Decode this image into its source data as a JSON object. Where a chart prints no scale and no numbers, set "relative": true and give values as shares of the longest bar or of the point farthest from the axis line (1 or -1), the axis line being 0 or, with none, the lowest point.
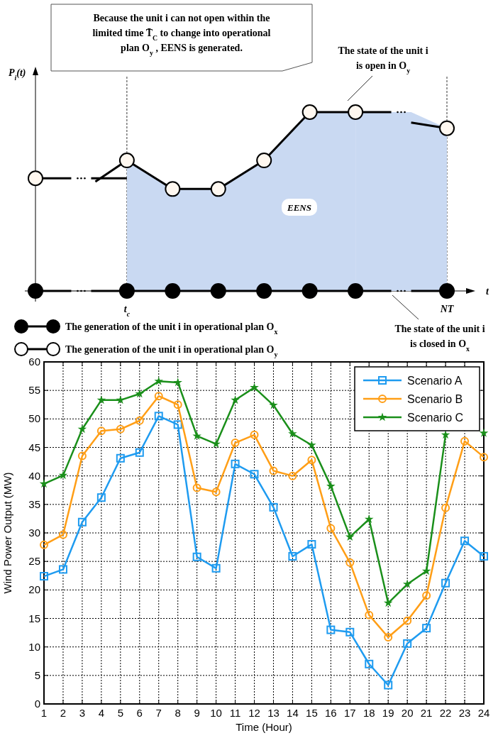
{
  "chart_data": [
    {
      "type": "line",
      "relative": true,
      "xlabel": "t",
      "ylabel": "P$_{i}$(t)",
      "legend": "bottom left",
      "categories": [
        null,
        null,
        "t$_{c}$",
        null,
        null,
        null,
        null,
        null,
        null,
        "NT"
      ],
      "series": [
        {
          "name": "The generation of the unit i in operational plan O$_{x}$",
          "color": "#000000",
          "marker": "circle",
          "values": [
            0,
            null,
            0,
            0,
            0,
            0,
            0,
            0,
            null,
            0
          ]
        },
        {
          "name": "The generation of the unit i in operational plan O$_{y}$",
          "type": "area",
          "color": "#c9d9f2",
          "marker": "circle",
          "values": [
            null,
            null,
            0.73,
            0.57,
            0.57,
            0.73,
            1,
            1,
            null,
            0.91
          ]
        },
        {
          "color": "#000000",
          "marker": "circle",
          "values": [
            0.63,
            null,
            null,
            null,
            null,
            null,
            null,
            null,
            null,
            null
          ]
        }
      ],
      "ref_lines": [
        {
          "axis": "x",
          "value": "t$_{c}$",
          "line_style": "dashed"
        },
        {
          "axis": "x",
          "value": "NT",
          "line_style": "dashed"
        }
      ],
      "annotations": [
        "Because the unit i can not open within the limited time T̄$_{C}$ to change into operational plan O$_{y}$ , EENS is generated.",
        "The state of the unit i is open in O$_{y}$",
        "EENS",
        "The state of the unit i is closed in O$_{x}$"
      ]
    },
    {
      "type": "line",
      "xlabel": "Time (Hour)",
      "ylabel": "Wind Power Output (MW)",
      "legend": "top right",
      "grid": true,
      "x": [
        1,
        2,
        3,
        4,
        5,
        6,
        7,
        8,
        9,
        10,
        11,
        12,
        13,
        14,
        15,
        16,
        17,
        18,
        19,
        20,
        21,
        22,
        23,
        24
      ],
      "xlim": [
        1,
        24
      ],
      "xticks": [
        1,
        2,
        3,
        4,
        5,
        6,
        7,
        8,
        9,
        10,
        11,
        12,
        13,
        14,
        15,
        16,
        17,
        18,
        19,
        20,
        21,
        22,
        23,
        24
      ],
      "ylim": [
        0,
        60
      ],
      "yticks": [
        0,
        5,
        10,
        15,
        20,
        25,
        30,
        35,
        40,
        45,
        50,
        55,
        60
      ],
      "series": [
        {
          "name": "Scenario A",
          "color": "#1e9bf0",
          "marker": "square",
          "values": [
            22.4,
            23.6,
            31.9,
            36.2,
            43.1,
            44.1,
            50.5,
            49.0,
            25.8,
            23.8,
            42.1,
            40.3,
            34.5,
            25.9,
            28.0,
            13.0,
            12.6,
            7.0,
            3.3,
            10.6,
            13.3,
            21.2,
            28.6,
            25.9
          ]
        },
        {
          "name": "Scenario B",
          "color": "#ff9e16",
          "marker": "circle",
          "values": [
            27.9,
            29.7,
            43.5,
            47.9,
            48.2,
            49.7,
            54.0,
            52.5,
            37.9,
            37.2,
            45.8,
            47.2,
            40.9,
            40.0,
            42.8,
            30.8,
            24.8,
            15.6,
            11.7,
            14.6,
            19.0,
            34.4,
            46.1,
            43.3
          ]
        },
        {
          "name": "Scenario C",
          "color": "#1a8f1a",
          "marker": "star",
          "values": [
            38.6,
            40.1,
            48.2,
            53.3,
            53.3,
            54.4,
            56.6,
            56.4,
            47.0,
            45.6,
            53.3,
            55.5,
            52.4,
            47.4,
            45.4,
            38.2,
            29.3,
            32.4,
            17.7,
            21.0,
            23.3,
            47.2,
            null,
            47.5
          ]
        }
      ]
    }
  ]
}
